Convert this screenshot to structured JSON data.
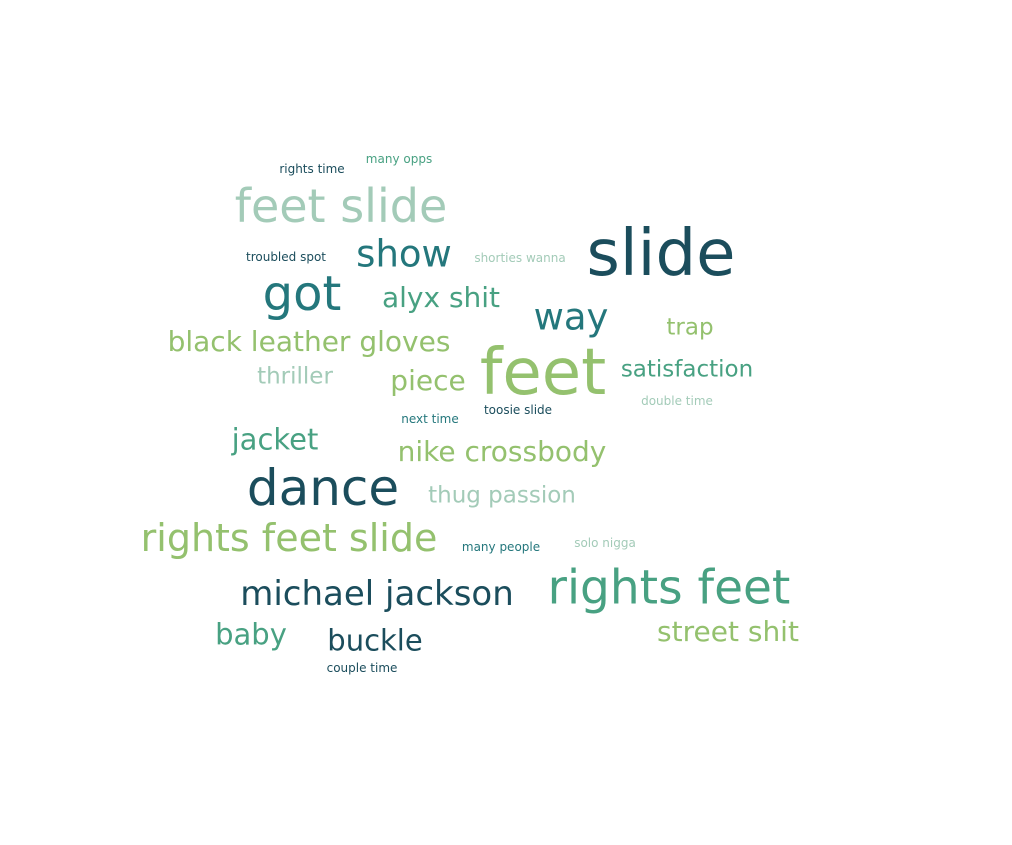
{
  "cloud": {
    "colors": {
      "dark": "#1b4d5c",
      "teal": "#24777c",
      "green": "#48a182",
      "lime": "#94c16e",
      "mint": "#a3cbb8"
    },
    "words": [
      {
        "text": "slide"
      },
      {
        "text": "feet"
      },
      {
        "text": "dance"
      },
      {
        "text": "rights feet"
      },
      {
        "text": "got"
      },
      {
        "text": "feet slide"
      },
      {
        "text": "rights feet slide"
      },
      {
        "text": "show"
      },
      {
        "text": "way"
      },
      {
        "text": "michael jackson"
      },
      {
        "text": "black leather gloves"
      },
      {
        "text": "alyx shit"
      },
      {
        "text": "nike crossbody"
      },
      {
        "text": "jacket"
      },
      {
        "text": "buckle"
      },
      {
        "text": "street shit"
      },
      {
        "text": "piece"
      },
      {
        "text": "baby"
      },
      {
        "text": "satisfaction"
      },
      {
        "text": "thug passion"
      },
      {
        "text": "trap"
      },
      {
        "text": "thriller"
      },
      {
        "text": "rights time"
      },
      {
        "text": "many opps"
      },
      {
        "text": "troubled spot"
      },
      {
        "text": "shorties wanna"
      },
      {
        "text": "next time"
      },
      {
        "text": "toosie slide"
      },
      {
        "text": "double time"
      },
      {
        "text": "many people"
      },
      {
        "text": "solo nigga"
      },
      {
        "text": "couple time"
      }
    ]
  }
}
